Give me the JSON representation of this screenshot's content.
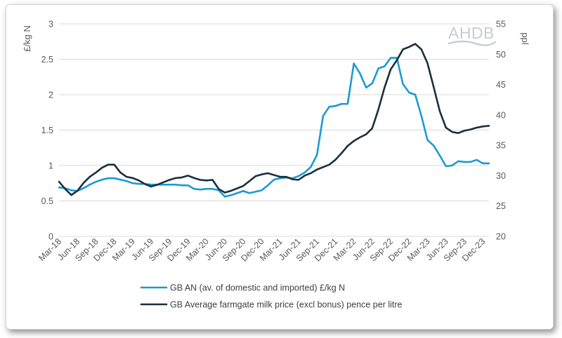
{
  "chart_data": {
    "type": "line",
    "title": "",
    "logo": "AHDB",
    "x_labels_shown": [
      "Mar-18",
      "Jun-18",
      "Sep-18",
      "Dec-18",
      "Mar-19",
      "Jun-19",
      "Sep-19",
      "Dec-19",
      "Mar-20",
      "Jun-20",
      "Sep-20",
      "Dec-20",
      "Mar-21",
      "Jun-21",
      "Sep-21",
      "Dec-21",
      "Mar-22",
      "Jun-22",
      "Sep-22",
      "Dec-22",
      "Mar-23",
      "Jun-23",
      "Sep-23",
      "Dec-23"
    ],
    "x_months": [
      "Mar-18",
      "Apr-18",
      "May-18",
      "Jun-18",
      "Jul-18",
      "Aug-18",
      "Sep-18",
      "Oct-18",
      "Nov-18",
      "Dec-18",
      "Jan-19",
      "Feb-19",
      "Mar-19",
      "Apr-19",
      "May-19",
      "Jun-19",
      "Jul-19",
      "Aug-19",
      "Sep-19",
      "Oct-19",
      "Nov-19",
      "Dec-19",
      "Jan-20",
      "Feb-20",
      "Mar-20",
      "Apr-20",
      "May-20",
      "Jun-20",
      "Jul-20",
      "Aug-20",
      "Sep-20",
      "Oct-20",
      "Nov-20",
      "Dec-20",
      "Jan-21",
      "Feb-21",
      "Mar-21",
      "Apr-21",
      "May-21",
      "Jun-21",
      "Jul-21",
      "Aug-21",
      "Sep-21",
      "Oct-21",
      "Nov-21",
      "Dec-21",
      "Jan-22",
      "Feb-22",
      "Mar-22",
      "Apr-22",
      "May-22",
      "Jun-22",
      "Jul-22",
      "Aug-22",
      "Sep-22",
      "Oct-22",
      "Nov-22",
      "Dec-22",
      "Jan-23",
      "Feb-23",
      "Mar-23",
      "Apr-23",
      "May-23",
      "Jun-23",
      "Jul-23",
      "Aug-23",
      "Sep-23",
      "Oct-23",
      "Nov-23",
      "Dec-23",
      "Jan-24"
    ],
    "y_left": {
      "label": "£/kg N",
      "min": 0,
      "max": 3,
      "ticks": [
        "0",
        "0.5",
        "1",
        "1.5",
        "2",
        "2.5",
        "3"
      ]
    },
    "y_right": {
      "label": "ppl",
      "min": 20,
      "max": 55,
      "ticks": [
        "20",
        "25",
        "30",
        "35",
        "40",
        "45",
        "50",
        "55"
      ]
    },
    "series": [
      {
        "name": "GB AN (av. of domestic and imported) £/kg N",
        "axis": "left",
        "color": "#1b9ad6",
        "values": [
          0.69,
          0.68,
          0.65,
          0.64,
          0.68,
          0.73,
          0.77,
          0.8,
          0.82,
          0.82,
          0.8,
          0.78,
          0.75,
          0.74,
          0.74,
          0.73,
          0.73,
          0.73,
          0.73,
          0.73,
          0.72,
          0.72,
          0.67,
          0.66,
          0.67,
          0.67,
          0.65,
          0.56,
          0.58,
          0.61,
          0.64,
          0.61,
          0.63,
          0.65,
          0.72,
          0.8,
          0.82,
          0.83,
          0.82,
          0.85,
          0.9,
          0.98,
          1.15,
          1.7,
          1.83,
          1.84,
          1.87,
          1.87,
          2.44,
          2.3,
          2.1,
          2.16,
          2.37,
          2.4,
          2.52,
          2.52,
          2.15,
          2.03,
          2.0,
          1.7,
          1.36,
          1.28,
          1.14,
          0.99,
          1.0,
          1.06,
          1.05,
          1.05,
          1.08,
          1.03,
          1.03
        ]
      },
      {
        "name": "GB Average farmgate milk price (excl bonus) pence per litre",
        "axis": "right",
        "color": "#17303f",
        "values": [
          29.0,
          27.8,
          26.8,
          27.5,
          28.8,
          29.8,
          30.5,
          31.3,
          31.8,
          31.8,
          30.5,
          29.8,
          29.6,
          29.2,
          28.6,
          28.2,
          28.5,
          28.9,
          29.3,
          29.6,
          29.7,
          30.0,
          29.6,
          29.3,
          29.2,
          29.3,
          27.8,
          27.2,
          27.5,
          27.9,
          28.3,
          29.1,
          29.9,
          30.2,
          30.4,
          30.1,
          29.8,
          29.8,
          29.4,
          29.3,
          30.0,
          30.4,
          31.0,
          31.4,
          31.8,
          32.6,
          33.7,
          34.9,
          35.7,
          36.3,
          36.8,
          37.8,
          40.9,
          44.5,
          47.5,
          49.0,
          50.8,
          51.2,
          51.7,
          50.8,
          48.5,
          44.6,
          40.6,
          37.9,
          37.2,
          37.0,
          37.4,
          37.6,
          37.9,
          38.1,
          38.2
        ]
      }
    ]
  }
}
